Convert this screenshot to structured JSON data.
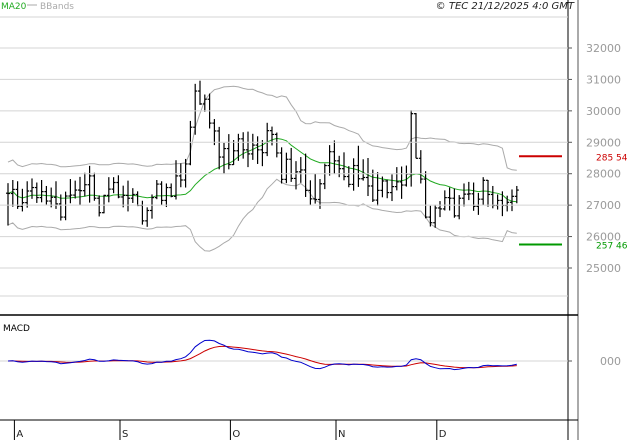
{
  "chart_data": {
    "type": "ohlc",
    "copyright": "© TEC 21/12/2025 4:0 GMT",
    "legend": [
      {
        "name": "MA20",
        "color": "#22aa22"
      },
      {
        "name": "BBands",
        "color": "#aaaaaa"
      }
    ],
    "price_axis": {
      "min": 24000,
      "max": 32500,
      "ticks": [
        25000,
        26000,
        27000,
        28000,
        29000,
        30000,
        31000,
        32000
      ]
    },
    "markers": [
      {
        "value": 28554,
        "label": "285 54",
        "color": "#cc0000"
      },
      {
        "value": 25746,
        "label": "257 46",
        "color": "#009900"
      }
    ],
    "months": [
      {
        "label": "A",
        "index": 3
      },
      {
        "label": "S",
        "index": 25
      },
      {
        "label": "O",
        "index": 48
      },
      {
        "label": "N",
        "index": 70
      },
      {
        "label": "D",
        "index": 91
      }
    ],
    "macd": {
      "title": "MACD",
      "zero_label": "000",
      "macd_color": "#0000cc",
      "signal_color": "#cc0000",
      "range": [
        -2100,
        1500
      ]
    },
    "bars": [
      [
        27380,
        27700,
        26350,
        27370
      ],
      [
        27370,
        27800,
        26950,
        27500
      ],
      [
        27500,
        27760,
        26880,
        26960
      ],
      [
        26960,
        27520,
        26800,
        27080
      ],
      [
        27080,
        27760,
        26920,
        27450
      ],
      [
        27450,
        27850,
        27200,
        27560
      ],
      [
        27560,
        27720,
        27070,
        27240
      ],
      [
        27240,
        27800,
        27090,
        27430
      ],
      [
        27430,
        27610,
        27020,
        27130
      ],
      [
        27130,
        27560,
        26930,
        27250
      ],
      [
        27250,
        27760,
        26880,
        27040
      ],
      [
        27040,
        27340,
        26510,
        26620
      ],
      [
        26620,
        27430,
        26520,
        27290
      ],
      [
        27290,
        27830,
        27060,
        27320
      ],
      [
        27320,
        27780,
        27210,
        27480
      ],
      [
        27480,
        27900,
        27010,
        27460
      ],
      [
        27460,
        28030,
        27280,
        27650
      ],
      [
        27650,
        28250,
        27080,
        27930
      ],
      [
        27930,
        28030,
        27140,
        27220
      ],
      [
        27220,
        27310,
        26640,
        26760
      ],
      [
        26760,
        27330,
        26740,
        27310
      ],
      [
        27310,
        27890,
        27090,
        27510
      ],
      [
        27510,
        27890,
        27380,
        27720
      ],
      [
        27720,
        27950,
        27220,
        27260
      ],
      [
        27260,
        27620,
        26930,
        27310
      ],
      [
        27310,
        27780,
        26800,
        27220
      ],
      [
        27220,
        27540,
        27070,
        27340
      ],
      [
        27340,
        27440,
        26970,
        26990
      ],
      [
        26990,
        27140,
        26380,
        26500
      ],
      [
        26500,
        26930,
        26310,
        26830
      ],
      [
        26830,
        27340,
        26570,
        27240
      ],
      [
        27240,
        27800,
        27190,
        27670
      ],
      [
        27670,
        27760,
        27010,
        27150
      ],
      [
        27150,
        27690,
        26940,
        27560
      ],
      [
        27560,
        27690,
        27250,
        27280
      ],
      [
        27280,
        28430,
        27180,
        27930
      ],
      [
        27930,
        28330,
        27570,
        27800
      ],
      [
        27800,
        28470,
        27560,
        28310
      ],
      [
        28310,
        29680,
        28270,
        29480
      ],
      [
        29480,
        30860,
        29240,
        30630
      ],
      [
        30630,
        30960,
        30190,
        30220
      ],
      [
        30220,
        30520,
        29970,
        30370
      ],
      [
        30370,
        30550,
        29440,
        29610
      ],
      [
        29610,
        29740,
        28910,
        29360
      ],
      [
        29360,
        29490,
        28140,
        28530
      ],
      [
        28530,
        28980,
        28010,
        28800
      ],
      [
        28800,
        29260,
        28140,
        28290
      ],
      [
        28290,
        29070,
        28280,
        28730
      ],
      [
        28730,
        29270,
        28410,
        29110
      ],
      [
        29110,
        29320,
        28480,
        28760
      ],
      [
        28760,
        29340,
        28210,
        28630
      ],
      [
        28630,
        29270,
        28440,
        28910
      ],
      [
        28910,
        29190,
        28310,
        28760
      ],
      [
        28760,
        29070,
        28240,
        28670
      ],
      [
        28670,
        29620,
        28560,
        29370
      ],
      [
        29370,
        29500,
        28900,
        29250
      ],
      [
        29250,
        29310,
        28520,
        28660
      ],
      [
        28660,
        28840,
        27690,
        27820
      ],
      [
        27820,
        28670,
        27700,
        28460
      ],
      [
        28460,
        28820,
        27740,
        27850
      ],
      [
        27850,
        28400,
        27500,
        28060
      ],
      [
        28060,
        28530,
        27710,
        28120
      ],
      [
        28120,
        28640,
        27260,
        27470
      ],
      [
        27470,
        27790,
        27010,
        27200
      ],
      [
        27200,
        28000,
        27050,
        27180
      ],
      [
        27180,
        27830,
        26880,
        27680
      ],
      [
        27680,
        28320,
        27510,
        28260
      ],
      [
        28260,
        28910,
        27940,
        28700
      ],
      [
        28700,
        29060,
        27990,
        28410
      ],
      [
        28410,
        28570,
        27890,
        28160
      ],
      [
        28160,
        28680,
        27790,
        27910
      ],
      [
        27910,
        28240,
        27570,
        27660
      ],
      [
        27660,
        28490,
        27460,
        28260
      ],
      [
        28260,
        28890,
        27580,
        27840
      ],
      [
        27840,
        28460,
        27780,
        27880
      ],
      [
        27880,
        28500,
        27290,
        27610
      ],
      [
        27610,
        28130,
        27100,
        27160
      ],
      [
        27160,
        28050,
        26980,
        27470
      ],
      [
        27470,
        27910,
        27250,
        27770
      ],
      [
        27770,
        27810,
        27220,
        27400
      ],
      [
        27400,
        27980,
        27130,
        27590
      ],
      [
        27590,
        28210,
        27470,
        27740
      ],
      [
        27740,
        28230,
        27200,
        27640
      ],
      [
        27640,
        28260,
        27590,
        27990
      ],
      [
        27990,
        30020,
        27590,
        29910
      ],
      [
        29910,
        29930,
        28490,
        28490
      ],
      [
        28490,
        28750,
        27690,
        27830
      ],
      [
        27830,
        28080,
        26580,
        26620
      ],
      [
        26620,
        26980,
        26320,
        26440
      ],
      [
        26440,
        27010,
        26280,
        26910
      ],
      [
        26910,
        27130,
        26620,
        26880
      ],
      [
        26880,
        27470,
        26830,
        27240
      ],
      [
        27240,
        27560,
        26830,
        27220
      ],
      [
        27220,
        27530,
        26600,
        26660
      ],
      [
        26660,
        27320,
        26550,
        27220
      ],
      [
        27220,
        27690,
        26960,
        27350
      ],
      [
        27350,
        27740,
        27160,
        27360
      ],
      [
        27360,
        27720,
        26820,
        26960
      ],
      [
        26960,
        27390,
        26690,
        27190
      ],
      [
        27190,
        27890,
        27000,
        27790
      ],
      [
        27790,
        27800,
        26950,
        27340
      ],
      [
        27340,
        27610,
        26900,
        26990
      ],
      [
        26990,
        27340,
        26860,
        27150
      ],
      [
        27150,
        27440,
        26650,
        26990
      ],
      [
        26990,
        27300,
        26800,
        27090
      ],
      [
        27090,
        27500,
        26810,
        27280
      ],
      [
        27280,
        27610,
        27060,
        27480
      ]
    ]
  }
}
